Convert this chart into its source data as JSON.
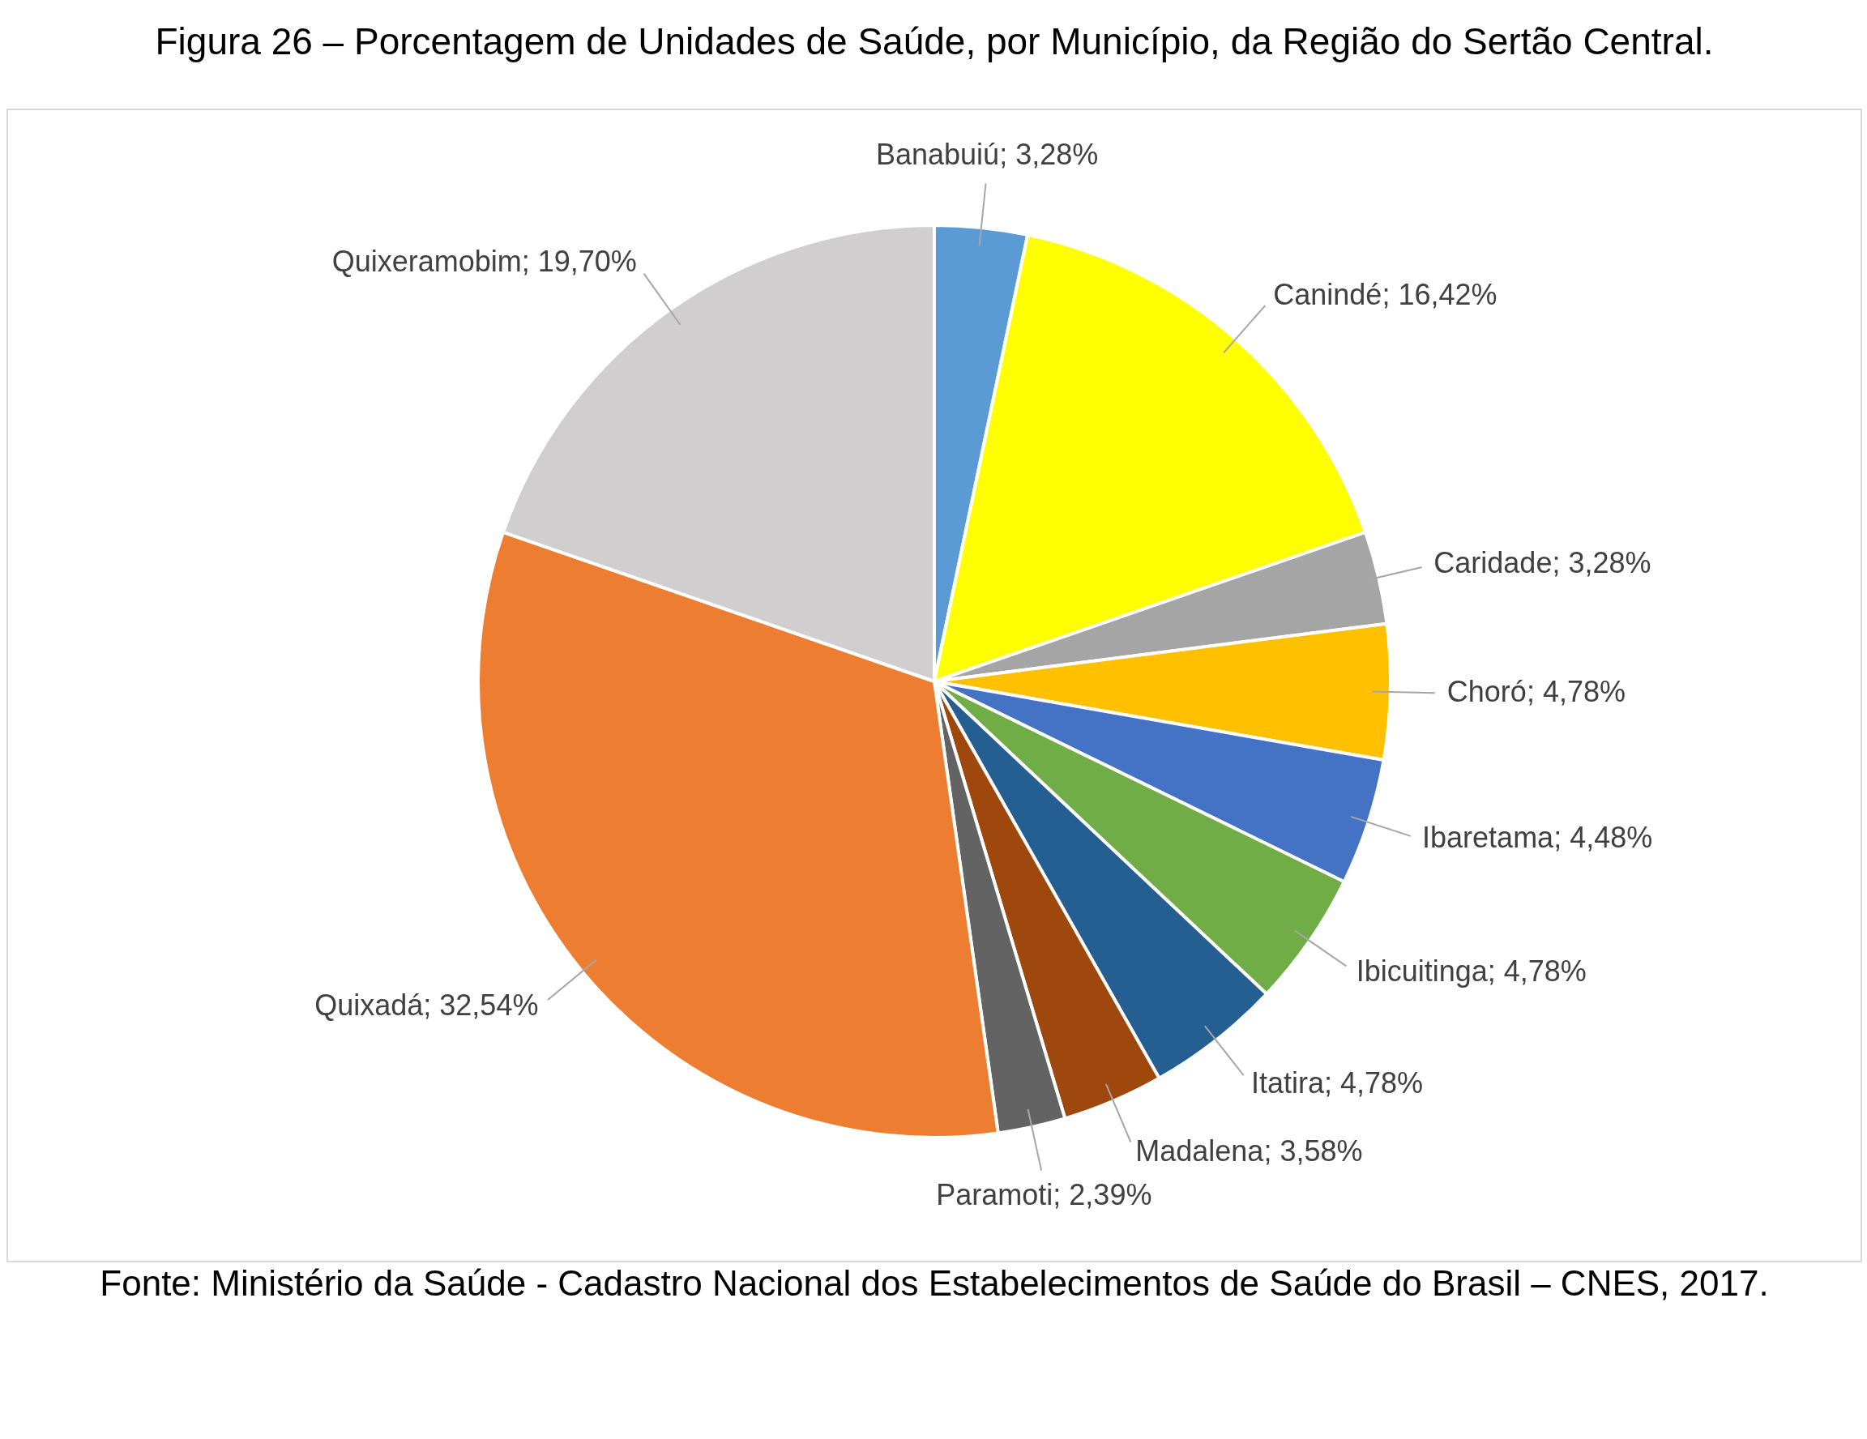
{
  "chart_data": {
    "type": "pie",
    "title": "Figura 26 – Porcentagem de Unidades de Saúde, por Município, da Região do Sertão Central.",
    "categories": [
      "Banabuiú",
      "Canindé",
      "Caridade",
      "Choró",
      "Ibaretama",
      "Ibicuitinga",
      "Itatira",
      "Madalena",
      "Paramoti",
      "Quixadá",
      "Quixeramobim"
    ],
    "values": [
      3.28,
      16.42,
      3.28,
      4.78,
      4.48,
      4.78,
      4.78,
      3.58,
      2.39,
      32.54,
      19.7
    ],
    "value_labels": [
      "3,28%",
      "16,42%",
      "3,28%",
      "4,78%",
      "4,48%",
      "4,78%",
      "4,78%",
      "3,58%",
      "2,39%",
      "32,54%",
      "19,70%"
    ],
    "colors": [
      "#5b9bd5",
      "#ffff00",
      "#a5a5a5",
      "#ffc000",
      "#4472c4",
      "#70ad47",
      "#255e91",
      "#9e480e",
      "#636363",
      "#ed7d31",
      "#d0cece"
    ],
    "legend": false,
    "annotations": [
      "Fonte: Ministério da Saúde - Cadastro Nacional dos Estabelecimentos de Saúde do Brasil – CNES, 2017."
    ]
  }
}
